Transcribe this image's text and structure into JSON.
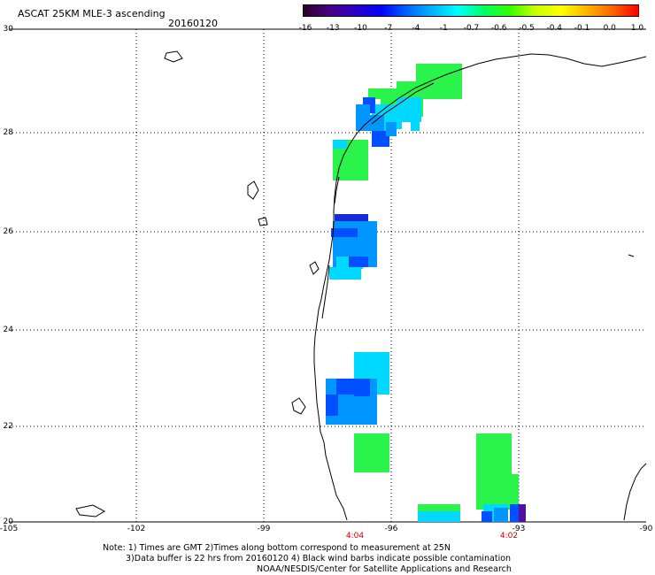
{
  "header": {
    "title": "ASCAT 25KM MLE-3 ascending",
    "date": "20160120"
  },
  "colorbar": {
    "labels": [
      "-16",
      "-13",
      "-10",
      "-7",
      "-4",
      "-1",
      "-0.7",
      "-0.6",
      "-0.5",
      "-0.4",
      "-0.1",
      "0.0",
      "1.0"
    ],
    "colors": [
      "#2a002a",
      "#4b0082",
      "#2a00c8",
      "#0000ff",
      "#0064ff",
      "#00b4ff",
      "#00ffff",
      "#00ff64",
      "#32ff00",
      "#c8ff00",
      "#ffff00",
      "#ffb400",
      "#ff6400",
      "#ff0000"
    ]
  },
  "axes": {
    "lat_labels": [
      "30",
      "28",
      "26",
      "24",
      "22",
      "20"
    ],
    "lon_labels": [
      "-105",
      "-102",
      "-99",
      "-96",
      "-93",
      "-90"
    ],
    "gridlines": "dotted"
  },
  "map": {
    "region": "Western Gulf of Mexico / Texas coast",
    "lon_range": [
      -105,
      -90
    ],
    "lat_range": [
      20,
      30
    ],
    "swath_colors": {
      "green": "#2af44c",
      "cyan": "#00d8ff",
      "azure": "#0096ff",
      "blue": "#0050ff",
      "darkblue": "#1a2ad8",
      "purple": "#5010a0"
    }
  },
  "times": {
    "t1": "4:04",
    "t2": "4:02"
  },
  "notes": {
    "line1": "Note: 1) Times are GMT 2)Times along bottom correspond to measurement at 25N",
    "line2": "3)Data buffer is 22 hrs from 20160120 4) Black wind barbs indicate possible contamination",
    "line3": "NOAA/NESDIS/Center for Satellite Applications and Research"
  }
}
